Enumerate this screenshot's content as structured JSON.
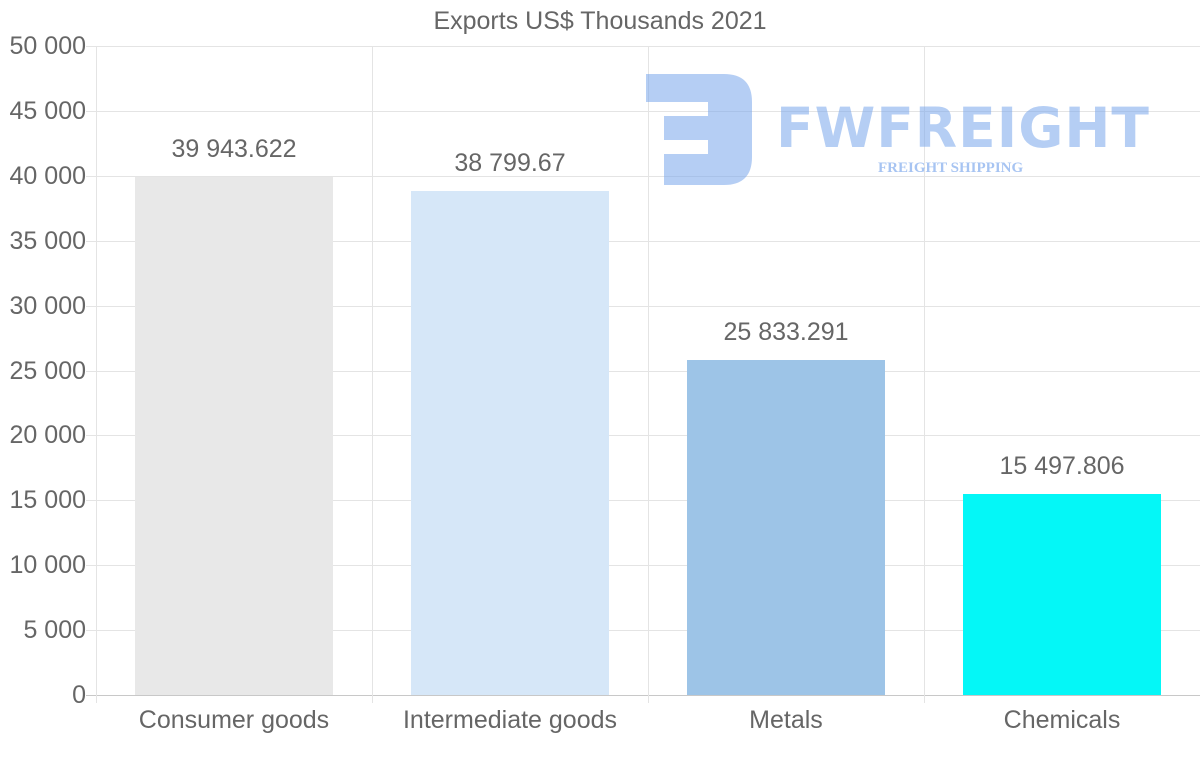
{
  "chart_data": {
    "type": "bar",
    "title": "Exports US$ Thousands 2021",
    "categories": [
      "Consumer goods",
      "Intermediate goods",
      "Metals",
      "Chemicals"
    ],
    "values": [
      39943.622,
      38799.67,
      25833.291,
      15497.806
    ],
    "value_labels": [
      "39 943.622",
      "38 799.67",
      "25 833.291",
      "15 497.806"
    ],
    "colors": [
      "#e8e8e8",
      "#d6e7f8",
      "#9dc4e7",
      "#04f7f7"
    ],
    "xlabel": "",
    "ylabel": "",
    "ylim": [
      0,
      50000
    ],
    "yticks": [
      0,
      5000,
      10000,
      15000,
      20000,
      25000,
      30000,
      35000,
      40000,
      45000,
      50000
    ],
    "ytick_labels": [
      "0",
      "5 000",
      "10 000",
      "15 000",
      "20 000",
      "25 000",
      "30 000",
      "35 000",
      "40 000",
      "45 000",
      "50 000"
    ],
    "grid": true,
    "legend": null
  },
  "watermark": {
    "brand": "FWFREIGHT",
    "tagline": "FREIGHT SHIPPING"
  }
}
